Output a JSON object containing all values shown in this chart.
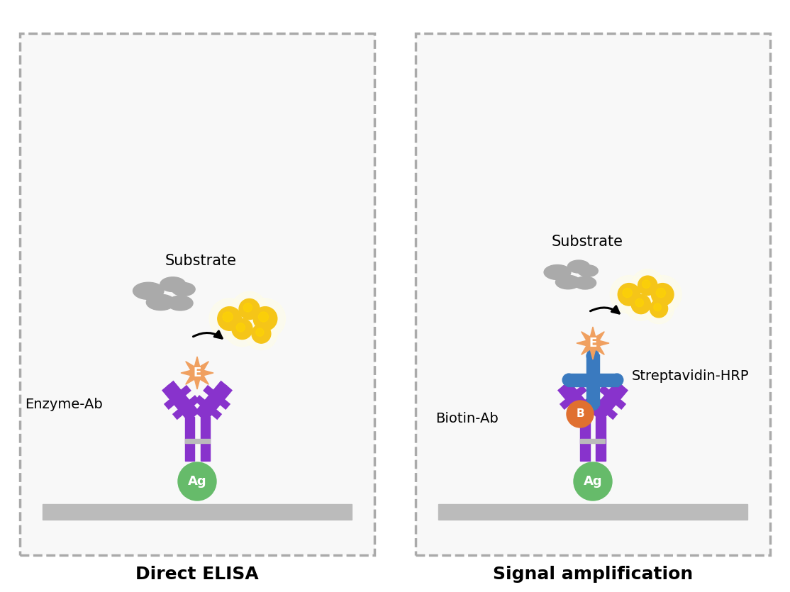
{
  "fig_width": 11.14,
  "fig_height": 8.35,
  "bg_color": "#ffffff",
  "ab_purple": "#8833cc",
  "ag_color": "#66bb6a",
  "ag_text": "Ag",
  "enzyme_color": "#f0a060",
  "enzyme_text": "E",
  "biotin_color": "#e07030",
  "biotin_text": "B",
  "streptavidin_color": "#3a7abf",
  "plate_color": "#bbbbbb",
  "label1": "Direct ELISA",
  "label2": "Signal amplification",
  "text_substrate": "Substrate",
  "text_enzyme_ab": "Enzyme-Ab",
  "text_biotin_ab": "Biotin-Ab",
  "text_streptavidin": "Streptavidin-HRP",
  "hinge_color": "#bbbbbb"
}
